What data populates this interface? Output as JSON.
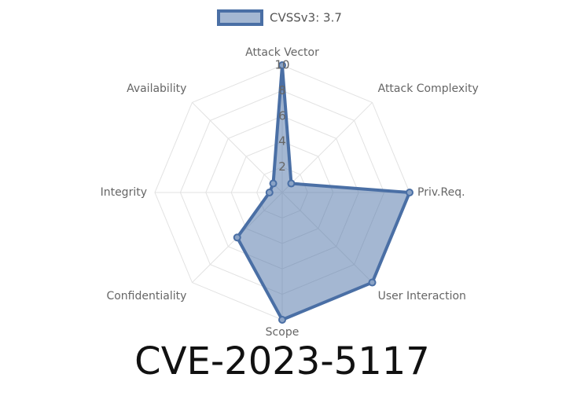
{
  "chart_data": {
    "type": "radar",
    "title": "CVE-2023-5117",
    "categories": [
      "Attack Vector",
      "Attack Complexity",
      "Priv.Req.",
      "User Interaction",
      "Scope",
      "Confidentiality",
      "Integrity",
      "Availability"
    ],
    "series": [
      {
        "name": "CVSSv3: 3.7",
        "color": "#4a6fa5",
        "values": [
          10,
          1,
          10,
          10,
          10,
          5,
          1,
          1
        ]
      }
    ],
    "rlim": [
      0,
      10
    ],
    "rticks": [
      2,
      4,
      6,
      8,
      10
    ],
    "grid": true,
    "legend": "top"
  }
}
